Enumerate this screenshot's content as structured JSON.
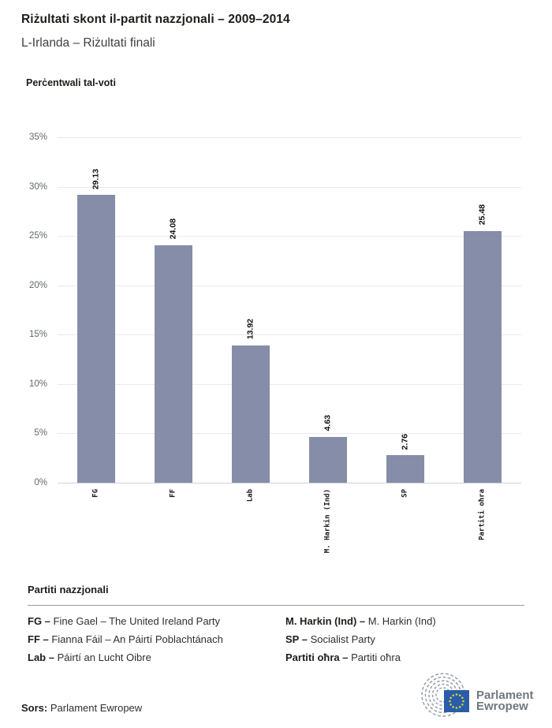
{
  "header": {
    "title": "Riżultati skont il-partit nazzjonali – 2009–2014",
    "subtitle": "L-Irlanda – Riżultati finali"
  },
  "chart_data": {
    "type": "bar",
    "ylabel": "Perċentwali tal-voti",
    "categories": [
      "FG",
      "FF",
      "Lab",
      "M. Harkin (Ind)",
      "SP",
      "Partiti oħra"
    ],
    "values": [
      29.13,
      24.08,
      13.92,
      4.63,
      2.76,
      25.48
    ],
    "value_label_decimals": 2,
    "ylim": [
      0,
      35
    ],
    "yticks": [
      35,
      30,
      25,
      20,
      15,
      10,
      5,
      0
    ],
    "ytick_suffix": "%",
    "grid": true,
    "legend_position": "none",
    "bar_color": "#858DA8",
    "gridline_color": "#e9e9eb",
    "axisline_color": "#ccd2da"
  },
  "legend": {
    "heading": "Partiti nazzjonali",
    "columns": [
      [
        {
          "key": "FG –",
          "name": "Fine Gael – The United Ireland Party"
        },
        {
          "key": "FF –",
          "name": "Fianna Fáil – An Páirtí Poblachtánach"
        },
        {
          "key": "Lab –",
          "name": "Páirtí an Lucht Oibre"
        }
      ],
      [
        {
          "key": "M. Harkin (Ind) –",
          "name": "M. Harkin (Ind)"
        },
        {
          "key": "SP –",
          "name": "Socialist Party"
        },
        {
          "key": "Partiti oħra –",
          "name": "Partiti oħra"
        }
      ]
    ]
  },
  "footer": {
    "source_label": "Sors:",
    "source_name": " Parlament Ewropew",
    "logo_line1": "Parlament",
    "logo_line2": "Ewropew",
    "logo_colors": {
      "flag_blue": "#2A5DA9",
      "star_yellow": "#D6CC3E",
      "hemicycle_gray": "#99A0A6",
      "text_gray": "#6E7780"
    }
  }
}
